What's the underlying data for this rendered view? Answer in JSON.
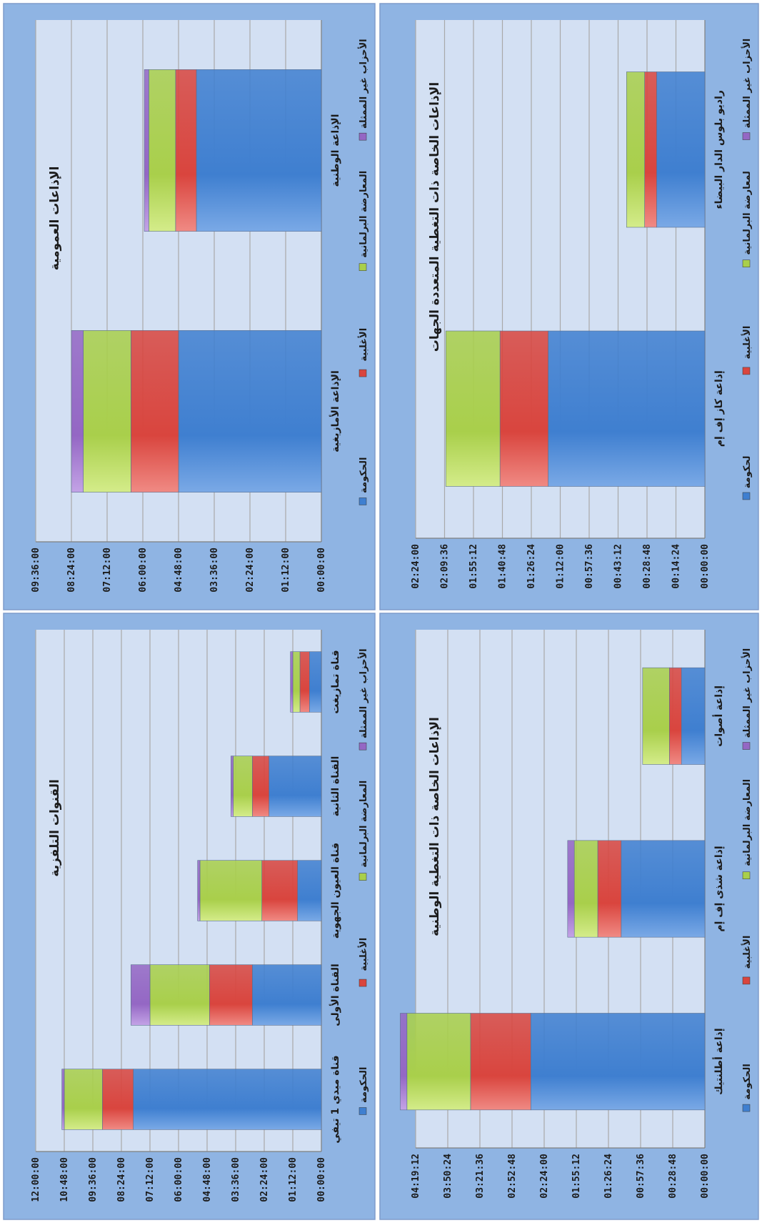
{
  "series_colors": [
    "#3f7fd0",
    "#d9453e",
    "#a9cf4b",
    "#9467c4"
  ],
  "chart_data": [
    {
      "type": "bar",
      "stacked": true,
      "title": "القنوات التلفزية",
      "categories": [
        "قناة ميدي 1 تيفي",
        "القناة الأولى",
        "قناة العيون الجهوية",
        "القناة الثانية",
        "قناة تمازيغت"
      ],
      "yticks": [
        "00:00:00",
        "01:12:00",
        "02:24:00",
        "03:36:00",
        "04:48:00",
        "06:00:00",
        "07:12:00",
        "08:24:00",
        "09:36:00",
        "10:48:00",
        "12:00:00"
      ],
      "ylim_hours": [
        0,
        12
      ],
      "series": [
        {
          "name": "الحكومة",
          "values": [
            7.9,
            2.9,
            1.0,
            2.2,
            0.5
          ]
        },
        {
          "name": "الأغلبية",
          "values": [
            1.3,
            1.8,
            1.5,
            0.7,
            0.4
          ]
        },
        {
          "name": "المعارضة البرلمانية",
          "values": [
            1.6,
            2.5,
            2.6,
            0.8,
            0.3
          ]
        },
        {
          "name": "الأحزاب غير الممثلة",
          "values": [
            0.1,
            0.8,
            0.1,
            0.1,
            0.1
          ]
        }
      ]
    },
    {
      "type": "bar",
      "stacked": true,
      "title": "الإذاعات العمومية",
      "categories": [
        "الإذاعة الأمازيغية",
        "الإذاعة الوطنية"
      ],
      "yticks": [
        "00:00:00",
        "01:12:00",
        "02:24:00",
        "03:36:00",
        "04:48:00",
        "06:00:00",
        "07:12:00",
        "08:24:00",
        "09:36:00"
      ],
      "ylim_hours": [
        0,
        9.6
      ],
      "series": [
        {
          "name": "الحكومة",
          "values": [
            4.8,
            4.2
          ]
        },
        {
          "name": "الأغلبية",
          "values": [
            1.6,
            0.7
          ]
        },
        {
          "name": "المعارضة البرلمانية",
          "values": [
            1.6,
            0.9
          ]
        },
        {
          "name": "الأحزاب غير الممثلة",
          "values": [
            0.4,
            0.15
          ]
        }
      ]
    },
    {
      "type": "bar",
      "stacked": true,
      "title": "الإذاعات الخاصة ذات التغطية الوطنية",
      "categories": [
        "إذاعة أطلنتيك",
        "إذاعة شذى إف إم",
        "إذاعة أصوات"
      ],
      "yticks": [
        "00:00:00",
        "00:28:48",
        "00:57:36",
        "01:26:24",
        "01:55:12",
        "02:24:00",
        "02:52:48",
        "03:21:36",
        "03:50:24",
        "04:19:12"
      ],
      "ylim_hours": [
        0,
        4.32
      ],
      "series": [
        {
          "name": "الحكومة",
          "values": [
            2.6,
            1.25,
            0.35
          ]
        },
        {
          "name": "الأغلبية",
          "values": [
            0.9,
            0.35,
            0.18
          ]
        },
        {
          "name": "المعارضة البرلمانية",
          "values": [
            0.95,
            0.35,
            0.4
          ]
        },
        {
          "name": "الأحزاب غير الممثلة",
          "values": [
            0.1,
            0.1,
            0.0
          ]
        }
      ]
    },
    {
      "type": "bar",
      "stacked": true,
      "title": "الإذاعات الخاصة ذات التغطية المتعددة الجهات",
      "categories": [
        "إذاعة كاز إف إم",
        "راديو بلوس الدار البيضاء"
      ],
      "yticks": [
        "00:00:00",
        "00:14:24",
        "00:28:48",
        "00:43:12",
        "00:57:36",
        "01:12:00",
        "01:26:24",
        "01:40:48",
        "01:55:12",
        "02:09:36",
        "02:24:00"
      ],
      "ylim_hours": [
        0,
        2.4
      ],
      "series": [
        {
          "name": "الحكومة",
          "values": [
            1.3,
            0.4
          ]
        },
        {
          "name": "الأغلبية",
          "values": [
            0.4,
            0.1
          ]
        },
        {
          "name": "المعارضة البرلمانية",
          "values": [
            0.45,
            0.15
          ]
        },
        {
          "name": "الأحزاب غير الممثلة",
          "values": [
            0.0,
            0.0
          ]
        }
      ]
    }
  ],
  "legends": [
    {
      "items": [
        "الحكومة",
        "الأغلبية",
        "المعارضة البرلمانية",
        "الأحزاب غير الممثلة"
      ]
    },
    {
      "items": [
        "الحكومة",
        "الأغلبية",
        "المعارضة البرلمانية",
        "الأحزاب غير الممثلة"
      ]
    },
    {
      "items": [
        "الحكومة",
        "الأغلبية",
        "المعارضة البرلمانية",
        "الأحزاب غير الممثلة"
      ]
    },
    {
      "items": [
        "لحكومة",
        "الأغلبية",
        "لمعارضة البرلمانية",
        "الأحزاب غير الممثلة"
      ]
    }
  ]
}
